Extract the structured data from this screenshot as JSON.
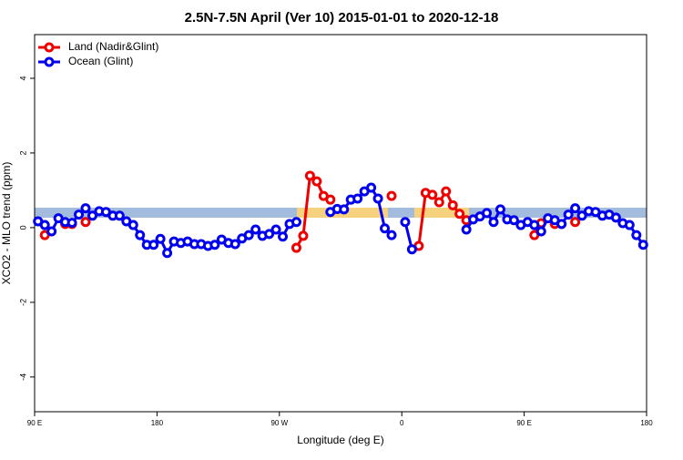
{
  "chart_data": {
    "type": "line",
    "title": "2.5N-7.5N April (Ver 10)   2015-01-01 to 2020-12-18",
    "x_label": "Longitude (deg E)",
    "y_label": "XCO2 - MLO trend (ppm)",
    "x": [
      92.5,
      97.5,
      102.5,
      107.5,
      112.5,
      117.5,
      122.5,
      127.5,
      132.5,
      137.5,
      142.5,
      147.5,
      152.5,
      157.5,
      162.5,
      167.5,
      172.5,
      177.5,
      182.5,
      187.5,
      192.5,
      197.5,
      202.5,
      207.5,
      212.5,
      217.5,
      222.5,
      227.5,
      232.5,
      237.5,
      242.5,
      247.5,
      252.5,
      257.5,
      262.5,
      267.5,
      272.5,
      277.5,
      282.5,
      287.5,
      292.5,
      297.5,
      302.5,
      307.5,
      312.5,
      317.5,
      322.5,
      327.5,
      332.5,
      337.5,
      342.5,
      347.5,
      352.5,
      357.5,
      362.5,
      367.5,
      372.5,
      377.5,
      382.5,
      387.5,
      392.5,
      397.5,
      402.5,
      407.5,
      412.5,
      417.5,
      422.5,
      427.5,
      432.5,
      437.5,
      442.5,
      447.5,
      452.5,
      457.5,
      462.5,
      467.5,
      472.5,
      477.5,
      482.5,
      487.5,
      492.5,
      497.5,
      502.5,
      507.5,
      512.5,
      517.5,
      522.5,
      527.5,
      532.5,
      537.5
    ],
    "series": [
      {
        "name": "Land (Nadir&Glint)",
        "color": "#ee0000",
        "values": [
          null,
          -0.2,
          null,
          null,
          0.1,
          0.1,
          null,
          0.15,
          null,
          null,
          null,
          null,
          null,
          null,
          null,
          null,
          null,
          null,
          null,
          null,
          null,
          null,
          null,
          null,
          null,
          null,
          null,
          null,
          null,
          null,
          null,
          null,
          null,
          null,
          null,
          null,
          null,
          null,
          -0.54,
          -0.22,
          1.39,
          1.24,
          0.85,
          0.75,
          null,
          null,
          null,
          null,
          null,
          null,
          null,
          null,
          0.85,
          null,
          null,
          null,
          -0.49,
          0.93,
          0.88,
          0.68,
          0.97,
          0.6,
          0.37,
          0.2,
          null,
          null,
          null,
          null,
          null,
          null,
          null,
          null,
          null,
          -0.2,
          0.12,
          null,
          0.1,
          0.1,
          null,
          0.15,
          null,
          null,
          null,
          null,
          null,
          null,
          null,
          null,
          null,
          null
        ]
      },
      {
        "name": "Ocean (Glint)",
        "color": "#0000ee",
        "values": [
          0.17,
          0.07,
          -0.1,
          0.25,
          0.15,
          0.13,
          0.35,
          0.52,
          0.32,
          0.44,
          0.42,
          0.32,
          0.32,
          0.17,
          0.07,
          -0.2,
          -0.46,
          -0.46,
          -0.3,
          -0.68,
          -0.37,
          -0.41,
          -0.37,
          -0.44,
          -0.44,
          -0.49,
          -0.46,
          -0.32,
          -0.41,
          -0.44,
          -0.29,
          -0.2,
          -0.05,
          -0.22,
          -0.17,
          -0.05,
          -0.24,
          0.1,
          0.15,
          null,
          null,
          null,
          null,
          0.42,
          0.5,
          0.49,
          0.75,
          0.78,
          0.97,
          1.07,
          0.78,
          -0.02,
          -0.2,
          null,
          0.15,
          -0.58,
          null,
          null,
          null,
          null,
          null,
          null,
          null,
          -0.05,
          0.22,
          0.3,
          0.39,
          0.15,
          0.49,
          0.22,
          0.2,
          0.07,
          0.15,
          0.07,
          -0.1,
          0.25,
          0.2,
          0.1,
          0.35,
          0.52,
          0.32,
          0.44,
          0.42,
          0.32,
          0.35,
          0.27,
          0.12,
          0.07,
          -0.2,
          -0.46
        ]
      }
    ],
    "xlim": [
      90,
      540
    ],
    "xticks": [
      {
        "value": 90,
        "label": "90 E"
      },
      {
        "value": 180,
        "label": "180"
      },
      {
        "value": 270,
        "label": "90 W"
      },
      {
        "value": 360,
        "label": "0"
      },
      {
        "value": 450,
        "label": "90 E"
      },
      {
        "value": 540,
        "label": "180"
      }
    ],
    "ylim": [
      -4.93,
      5.17
    ],
    "yticks": [
      -4,
      -2,
      0,
      2,
      4
    ],
    "legend": "top-left"
  }
}
